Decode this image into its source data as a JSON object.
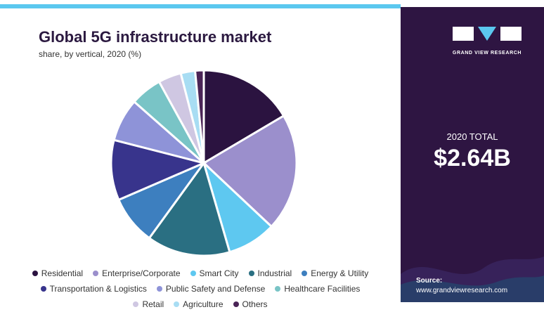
{
  "title": "Global 5G infrastructure market",
  "subtitle": "share, by vertical, 2020 (%)",
  "colors": {
    "top_rule": "#5bc8ef",
    "panel_bg": "#2e1542",
    "title_text": "#2b1940"
  },
  "logo": {
    "name": "grand-view-research-logo",
    "text": "GRAND VIEW RESEARCH"
  },
  "total": {
    "label": "2020 TOTAL",
    "value": "$2.64B"
  },
  "source": {
    "label": "Source:",
    "url": "www.grandviewresearch.com"
  },
  "chart_data": {
    "type": "pie",
    "title": "Global 5G infrastructure market",
    "subtitle": "share, by vertical, 2020 (%)",
    "legend_position": "bottom",
    "categories": [
      "Residential",
      "Enterprise/Corporate",
      "Smart City",
      "Industrial",
      "Energy & Utility",
      "Transportation & Logistics",
      "Public Safety and Defense",
      "Healthcare Facilities",
      "Retail",
      "Agriculture",
      "Others"
    ],
    "values": [
      16.5,
      20.5,
      8.5,
      14.5,
      8.5,
      10.5,
      7.5,
      5.5,
      4.0,
      2.5,
      1.5
    ],
    "colors": [
      "#2b1340",
      "#9b8fcc",
      "#5ec8f0",
      "#2a6f82",
      "#3d7fbf",
      "#38348c",
      "#8e93d8",
      "#79c4c6",
      "#cfc7e2",
      "#a8ddf3",
      "#4a2456"
    ]
  }
}
